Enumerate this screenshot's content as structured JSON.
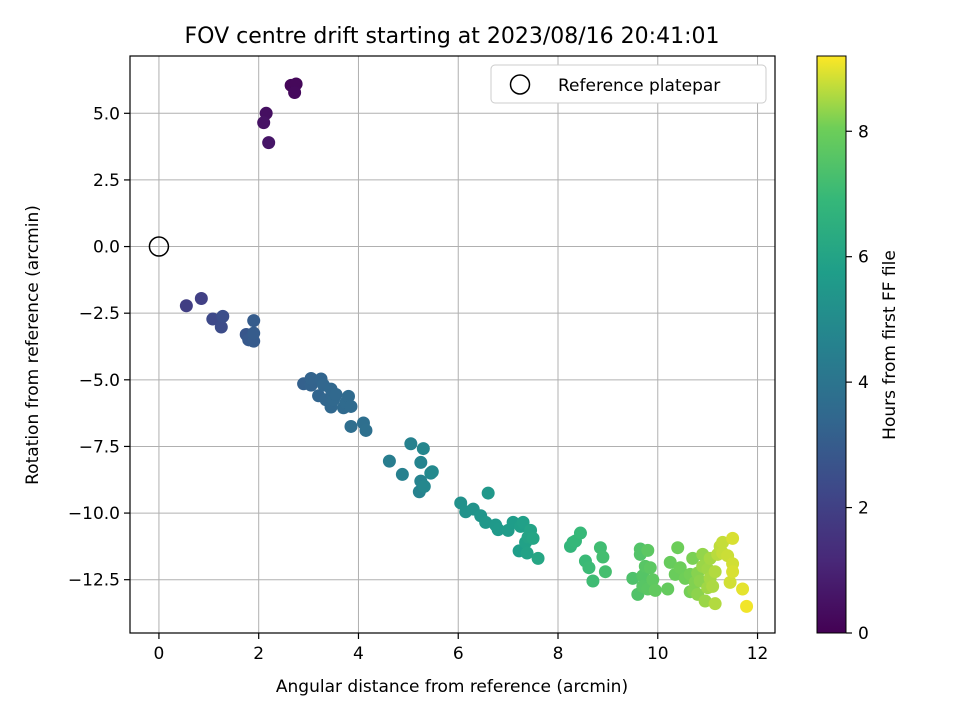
{
  "chart_data": {
    "type": "scatter",
    "title": "FOV centre drift starting at 2023/08/16 20:41:01",
    "xlabel": "Angular distance from reference (arcmin)",
    "ylabel": "Rotation from reference (arcmin)",
    "xlim": [
      -0.58,
      12.35
    ],
    "ylim": [
      -14.5,
      7.15
    ],
    "xticks": [
      0,
      2,
      4,
      6,
      8,
      10,
      12
    ],
    "xtick_labels": [
      "0",
      "2",
      "4",
      "6",
      "8",
      "10",
      "12"
    ],
    "yticks": [
      5.0,
      2.5,
      0.0,
      -2.5,
      -5.0,
      -7.5,
      -10.0,
      -12.5
    ],
    "ytick_labels": [
      "5.0",
      "2.5",
      "0.0",
      "−2.5",
      "−5.0",
      "−7.5",
      "−10.0",
      "−12.5"
    ],
    "grid": true,
    "legend": {
      "placement": "top-right",
      "entries": [
        "Reference platepar"
      ]
    },
    "reference_point": {
      "x": 0.0,
      "y": 0.0
    },
    "colorbar": {
      "label": "Hours from first FF file",
      "colormap": "viridis",
      "range": [
        0,
        9.2
      ],
      "ticks": [
        0,
        2,
        4,
        6,
        8
      ],
      "tick_labels": [
        "0",
        "2",
        "4",
        "6",
        "8"
      ]
    },
    "points": [
      [
        2.65,
        6.05,
        0.15
      ],
      [
        2.75,
        6.1,
        0.2
      ],
      [
        2.72,
        5.78,
        0.25
      ],
      [
        2.15,
        5.0,
        0.4
      ],
      [
        2.1,
        4.65,
        0.5
      ],
      [
        2.2,
        3.9,
        0.6
      ],
      [
        0.55,
        -2.22,
        1.9
      ],
      [
        0.85,
        -1.95,
        2.0
      ],
      [
        1.08,
        -2.72,
        2.3
      ],
      [
        1.25,
        -3.02,
        2.4
      ],
      [
        1.28,
        -2.62,
        2.5
      ],
      [
        1.75,
        -3.3,
        2.8
      ],
      [
        1.8,
        -3.5,
        2.9
      ],
      [
        1.9,
        -3.55,
        2.95
      ],
      [
        1.9,
        -3.25,
        3.0
      ],
      [
        1.9,
        -2.78,
        3.0
      ],
      [
        2.9,
        -5.15,
        3.2
      ],
      [
        3.05,
        -5.2,
        3.25
      ],
      [
        3.05,
        -4.95,
        3.3
      ],
      [
        3.2,
        -5.6,
        3.35
      ],
      [
        3.25,
        -4.97,
        3.35
      ],
      [
        3.3,
        -5.2,
        3.4
      ],
      [
        3.35,
        -5.75,
        3.4
      ],
      [
        3.45,
        -6.02,
        3.45
      ],
      [
        3.45,
        -5.35,
        3.45
      ],
      [
        3.5,
        -5.75,
        3.5
      ],
      [
        3.55,
        -5.55,
        3.5
      ],
      [
        3.7,
        -6.05,
        3.55
      ],
      [
        3.75,
        -5.85,
        3.6
      ],
      [
        3.8,
        -5.62,
        3.6
      ],
      [
        3.85,
        -6.0,
        3.6
      ],
      [
        3.85,
        -6.75,
        3.7
      ],
      [
        4.1,
        -6.62,
        3.75
      ],
      [
        4.15,
        -6.9,
        3.8
      ],
      [
        4.62,
        -8.05,
        4.4
      ],
      [
        4.88,
        -8.55,
        4.5
      ],
      [
        5.05,
        -7.4,
        4.55
      ],
      [
        5.22,
        -9.2,
        4.6
      ],
      [
        5.25,
        -8.8,
        4.65
      ],
      [
        5.25,
        -8.1,
        4.7
      ],
      [
        5.3,
        -7.58,
        4.75
      ],
      [
        5.32,
        -9.0,
        4.8
      ],
      [
        5.45,
        -8.5,
        4.85
      ],
      [
        5.48,
        -8.45,
        4.9
      ],
      [
        6.05,
        -9.62,
        5.2
      ],
      [
        6.15,
        -9.95,
        5.25
      ],
      [
        6.3,
        -9.85,
        5.3
      ],
      [
        6.45,
        -10.1,
        5.4
      ],
      [
        6.55,
        -10.35,
        5.45
      ],
      [
        6.6,
        -9.25,
        5.5
      ],
      [
        6.75,
        -10.45,
        5.55
      ],
      [
        6.8,
        -10.62,
        5.6
      ],
      [
        7.0,
        -10.65,
        5.65
      ],
      [
        7.1,
        -10.35,
        5.7
      ],
      [
        7.22,
        -11.42,
        5.75
      ],
      [
        7.25,
        -10.5,
        5.8
      ],
      [
        7.3,
        -10.35,
        5.85
      ],
      [
        7.35,
        -11.1,
        5.9
      ],
      [
        7.38,
        -11.5,
        5.95
      ],
      [
        7.4,
        -10.9,
        6.0
      ],
      [
        7.45,
        -10.65,
        6.0
      ],
      [
        7.5,
        -10.95,
        6.05
      ],
      [
        7.6,
        -11.7,
        6.1
      ],
      [
        8.25,
        -11.25,
        6.8
      ],
      [
        8.3,
        -11.1,
        6.85
      ],
      [
        8.35,
        -11.05,
        6.9
      ],
      [
        8.45,
        -10.75,
        6.95
      ],
      [
        8.55,
        -11.8,
        7.0
      ],
      [
        8.62,
        -12.05,
        7.05
      ],
      [
        8.7,
        -12.55,
        7.1
      ],
      [
        8.85,
        -11.3,
        7.15
      ],
      [
        8.9,
        -11.65,
        7.2
      ],
      [
        8.95,
        -12.2,
        7.25
      ],
      [
        9.5,
        -12.45,
        7.4
      ],
      [
        9.6,
        -13.05,
        7.45
      ],
      [
        9.65,
        -11.35,
        7.5
      ],
      [
        9.65,
        -11.55,
        7.5
      ],
      [
        9.7,
        -12.35,
        7.55
      ],
      [
        9.7,
        -12.75,
        7.6
      ],
      [
        9.75,
        -12.0,
        7.6
      ],
      [
        9.8,
        -12.85,
        7.65
      ],
      [
        9.8,
        -11.4,
        7.7
      ],
      [
        9.85,
        -12.05,
        7.7
      ],
      [
        9.9,
        -12.5,
        7.75
      ],
      [
        9.95,
        -12.9,
        7.8
      ],
      [
        10.2,
        -12.85,
        7.85
      ],
      [
        10.25,
        -11.85,
        7.9
      ],
      [
        10.35,
        -12.3,
        7.95
      ],
      [
        10.4,
        -11.3,
        8.0
      ],
      [
        10.45,
        -12.05,
        8.0
      ],
      [
        10.55,
        -12.45,
        8.05
      ],
      [
        10.65,
        -12.95,
        8.1
      ],
      [
        10.65,
        -12.3,
        8.1
      ],
      [
        10.7,
        -11.7,
        8.15
      ],
      [
        10.72,
        -12.9,
        8.2
      ],
      [
        10.75,
        -12.6,
        8.2
      ],
      [
        10.8,
        -12.25,
        8.25
      ],
      [
        10.8,
        -13.05,
        8.3
      ],
      [
        10.85,
        -12.55,
        8.3
      ],
      [
        10.9,
        -11.55,
        8.35
      ],
      [
        10.9,
        -12.0,
        8.4
      ],
      [
        10.95,
        -13.3,
        8.4
      ],
      [
        11.0,
        -12.8,
        8.45
      ],
      [
        11.0,
        -12.1,
        8.45
      ],
      [
        11.05,
        -12.45,
        8.5
      ],
      [
        11.05,
        -11.7,
        8.5
      ],
      [
        11.1,
        -12.75,
        8.55
      ],
      [
        11.15,
        -13.4,
        8.6
      ],
      [
        11.15,
        -12.2,
        8.6
      ],
      [
        11.2,
        -11.55,
        8.65
      ],
      [
        11.25,
        -11.25,
        8.7
      ],
      [
        11.3,
        -11.5,
        8.75
      ],
      [
        11.3,
        -11.1,
        8.75
      ],
      [
        11.4,
        -11.6,
        8.8
      ],
      [
        11.45,
        -12.6,
        8.85
      ],
      [
        11.5,
        -11.9,
        8.85
      ],
      [
        11.5,
        -10.95,
        8.9
      ],
      [
        11.5,
        -12.2,
        8.9
      ],
      [
        11.7,
        -12.85,
        9.0
      ],
      [
        11.78,
        -13.5,
        9.1
      ]
    ]
  }
}
